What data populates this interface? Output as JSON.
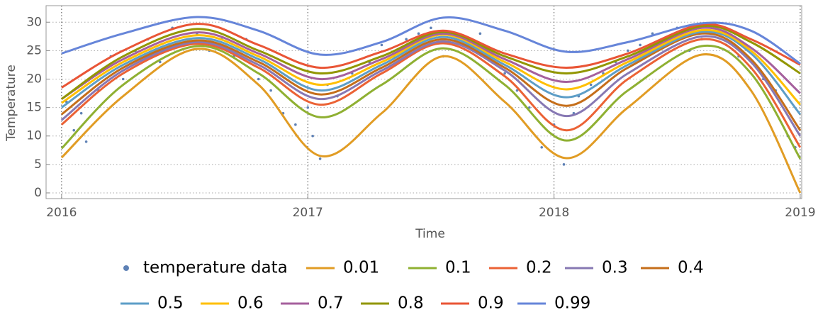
{
  "chart_data": {
    "type": "line",
    "xlabel": "Time",
    "ylabel": "Temperature",
    "xlim": [
      2015.937,
      2019.006
    ],
    "ylim": [
      -1,
      32.9
    ],
    "xticks": [
      2016,
      2017,
      2018,
      2019
    ],
    "yticks": [
      0,
      5,
      10,
      15,
      20,
      25,
      30
    ],
    "grid": true,
    "points": {
      "name": "temperature data",
      "color": "#5e81b5",
      "x": [
        2016.02,
        2016.05,
        2016.08,
        2016.1,
        2016.15,
        2016.2,
        2016.25,
        2016.3,
        2016.35,
        2016.4,
        2016.45,
        2016.5,
        2016.55,
        2016.6,
        2016.65,
        2016.7,
        2016.75,
        2016.8,
        2016.85,
        2016.9,
        2016.95,
        2017.0,
        2017.02,
        2017.05,
        2017.08,
        2017.12,
        2017.18,
        2017.25,
        2017.3,
        2017.35,
        2017.4,
        2017.45,
        2017.5,
        2017.55,
        2017.6,
        2017.65,
        2017.7,
        2017.75,
        2017.8,
        2017.85,
        2017.9,
        2017.95,
        2018.0,
        2018.04,
        2018.08,
        2018.1,
        2018.15,
        2018.2,
        2018.25,
        2018.3,
        2018.35,
        2018.4,
        2018.45,
        2018.5,
        2018.55,
        2018.6,
        2018.65,
        2018.7,
        2018.75,
        2018.8,
        2018.85,
        2018.9,
        2018.95,
        2018.98
      ],
      "values": [
        16,
        11,
        14,
        9,
        18,
        24,
        20,
        25,
        27,
        23,
        29,
        26,
        28,
        25,
        27,
        24,
        27,
        20,
        18,
        14,
        12,
        15,
        10,
        6,
        19,
        17,
        21,
        23,
        26,
        24,
        27,
        28,
        29,
        24,
        27,
        26,
        28,
        23,
        21,
        18,
        15,
        8,
        12,
        5,
        14,
        17,
        19,
        21,
        23,
        25,
        26,
        28,
        27,
        29,
        25,
        27,
        28,
        26,
        24,
        22,
        20,
        18,
        10,
        8
      ]
    },
    "x": [
      2016,
      2016.25,
      2016.55,
      2016.8,
      2017.05,
      2017.3,
      2017.55,
      2017.8,
      2018.05,
      2018.3,
      2018.6,
      2018.8,
      2019
    ],
    "series": [
      {
        "name": "0.01",
        "color": "#e19c24",
        "values": [
          6.2,
          17,
          25.3,
          19,
          6.5,
          14,
          24,
          16,
          6.1,
          15,
          24.3,
          18,
          0
        ]
      },
      {
        "name": "0.1",
        "color": "#8fb032",
        "values": [
          7.8,
          19,
          25.8,
          21,
          13.3,
          19,
          25.4,
          19,
          9.2,
          18,
          25.8,
          21,
          6
        ]
      },
      {
        "name": "0.2",
        "color": "#eb6235",
        "values": [
          12,
          21,
          26.2,
          22,
          15.5,
          21,
          26.3,
          20.5,
          11,
          20,
          27,
          22,
          8
        ]
      },
      {
        "name": "0.3",
        "color": "#8778b3",
        "values": [
          12.8,
          21.5,
          26.5,
          22.5,
          16.5,
          21.5,
          26.6,
          21.5,
          13.5,
          21,
          27.5,
          23,
          10
        ]
      },
      {
        "name": "0.4",
        "color": "#c56e1a",
        "values": [
          13.8,
          22,
          26.8,
          23,
          17.3,
          22,
          27,
          22,
          15.3,
          22,
          28,
          23.5,
          11
        ]
      },
      {
        "name": "0.5",
        "color": "#5d9ec7",
        "values": [
          15,
          22.5,
          27.2,
          23.5,
          18,
          22.5,
          27.4,
          22.5,
          16.8,
          22.5,
          28.3,
          24.5,
          13.8
        ]
      },
      {
        "name": "0.6",
        "color": "#ffbf00",
        "values": [
          15.8,
          23,
          27.7,
          24,
          19,
          23,
          27.8,
          23,
          18.2,
          23,
          28.6,
          25,
          15.5
        ]
      },
      {
        "name": "0.7",
        "color": "#a5609d",
        "values": [
          16.5,
          23.5,
          28.2,
          24.5,
          20,
          23.5,
          28,
          23.5,
          19.5,
          23.5,
          29,
          25.5,
          17.5
        ]
      },
      {
        "name": "0.8",
        "color": "#929600",
        "values": [
          16.5,
          24,
          28.8,
          25,
          21,
          24,
          28.3,
          24,
          21,
          24,
          29.3,
          26.5,
          21
        ]
      },
      {
        "name": "0.9",
        "color": "#e95536",
        "values": [
          18.5,
          25,
          29.7,
          26,
          22,
          24.8,
          28.5,
          24.5,
          22,
          24.5,
          29.6,
          27,
          22.5
        ]
      },
      {
        "name": "0.99",
        "color": "#6685d9",
        "values": [
          24.5,
          28,
          30.9,
          28.5,
          24.3,
          26.5,
          30.8,
          28.5,
          24.8,
          26.5,
          29.8,
          28.5,
          22.7
        ]
      }
    ]
  }
}
